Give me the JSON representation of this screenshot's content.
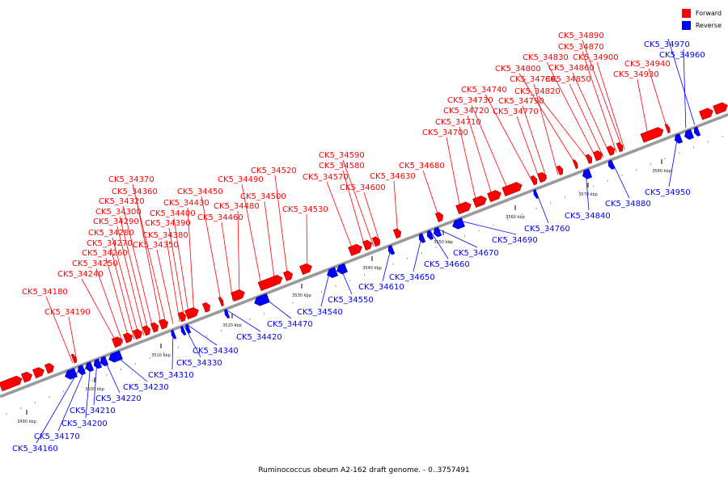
{
  "legend": {
    "forward": {
      "label": "Forward",
      "color": "#ff0000"
    },
    "reverse": {
      "label": "Reverse",
      "color": "#0000ff"
    }
  },
  "caption": "Ruminococcus obeum A2-162 draft genome. - 0..3757491",
  "axis_ticks": [
    "3490 kbp",
    "3500 kbp",
    "3510 kbp",
    "3520 kbp",
    "3530 kbp",
    "3540 kbp",
    "3550 kbp",
    "3560 kbp",
    "3570 kbp",
    "3580 kbp"
  ],
  "forward_labels": [
    "CK5_34180",
    "CK5_34190",
    "CK5_34240",
    "CK5_34250",
    "CK5_34260",
    "CK5_34270",
    "CK5_34280",
    "CK5_34290",
    "CK5_34300",
    "CK5_34320",
    "CK5_34360",
    "CK5_34370",
    "CK5_34350",
    "CK5_34380",
    "CK5_34390",
    "CK5_34400",
    "CK5_34430",
    "CK5_34450",
    "CK5_34460",
    "CK5_34480",
    "CK5_34490",
    "CK5_34500",
    "CK5_34520",
    "CK5_34530",
    "CK5_34570",
    "CK5_34580",
    "CK5_34590",
    "CK5_34600",
    "CK5_34630",
    "CK5_34680",
    "CK5_34700",
    "CK5_34710",
    "CK5_34720",
    "CK5_34730",
    "CK5_34740",
    "CK5_34770",
    "CK5_34790",
    "CK5_34780",
    "CK5_34800",
    "CK5_34820",
    "CK5_34830",
    "CK5_34850",
    "CK5_34860",
    "CK5_34870",
    "CK5_34890",
    "CK5_34900",
    "CK5_34930",
    "CK5_34940"
  ],
  "reverse_labels": [
    "CK5_34160",
    "CK5_34170",
    "CK5_34200",
    "CK5_34210",
    "CK5_34220",
    "CK5_34230",
    "CK5_34310",
    "CK5_34330",
    "CK5_34340",
    "CK5_34420",
    "CK5_34470",
    "CK5_34540",
    "CK5_34550",
    "CK5_34610",
    "CK5_34650",
    "CK5_34660",
    "CK5_34670",
    "CK5_34690",
    "CK5_34760",
    "CK5_34840",
    "CK5_34880",
    "CK5_34950",
    "CK5_34960",
    "CK5_34970"
  ]
}
